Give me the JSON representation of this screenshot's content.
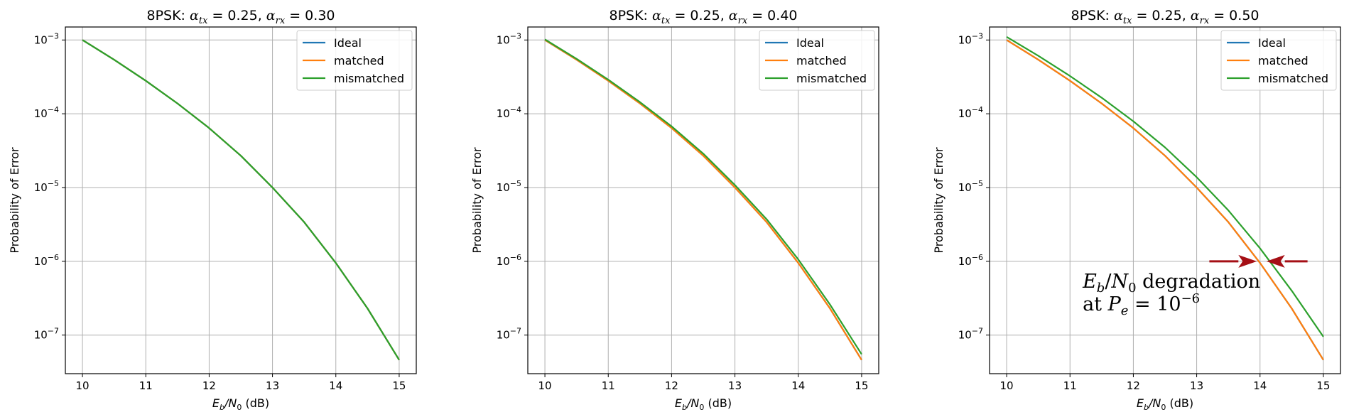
{
  "chart_data": [
    {
      "type": "line",
      "title": "8PSK: α_tx = 0.25, α_rx = 0.30",
      "title_parts": {
        "prefix": "8PSK: ",
        "alpha_tx": "0.25",
        "alpha_rx": "0.30"
      },
      "xlabel": "E_b/N_0 (dB)",
      "ylabel": "Probability of Error",
      "xlim": [
        9.73,
        15.27
      ],
      "ylim": [
        3e-08,
        0.0015
      ],
      "yscale": "log",
      "grid": true,
      "legend_position": "top-right",
      "xticks": [
        10,
        11,
        12,
        13,
        14,
        15
      ],
      "yticks": [
        {
          "exp": -3,
          "value": 0.001
        },
        {
          "exp": -4,
          "value": 0.0001
        },
        {
          "exp": -5,
          "value": 1e-05
        },
        {
          "exp": -6,
          "value": 1e-06
        },
        {
          "exp": -7,
          "value": 1e-07
        }
      ],
      "x": [
        10,
        10.5,
        11,
        11.5,
        12,
        12.5,
        13,
        13.5,
        14,
        14.5,
        15
      ],
      "series": [
        {
          "name": "Ideal",
          "color": "#1f77b4",
          "values": [
            0.001,
            0.00054,
            0.00028,
            0.000138,
            6.4e-05,
            2.7e-05,
            1e-05,
            3.4e-06,
            9.5e-07,
            2.3e-07,
            4.6e-08
          ]
        },
        {
          "name": "matched",
          "color": "#ff7f0e",
          "values": [
            0.001,
            0.00054,
            0.00028,
            0.000138,
            6.4e-05,
            2.7e-05,
            1e-05,
            3.4e-06,
            9.5e-07,
            2.3e-07,
            4.6e-08
          ]
        },
        {
          "name": "mismatched",
          "color": "#2ca02c",
          "values": [
            0.001,
            0.00054,
            0.00028,
            0.000138,
            6.4e-05,
            2.7e-05,
            1e-05,
            3.4e-06,
            9.5e-07,
            2.3e-07,
            4.6e-08
          ]
        }
      ]
    },
    {
      "type": "line",
      "title": "8PSK: α_tx = 0.25, α_rx = 0.40",
      "title_parts": {
        "prefix": "8PSK: ",
        "alpha_tx": "0.25",
        "alpha_rx": "0.40"
      },
      "xlabel": "E_b/N_0 (dB)",
      "ylabel": "Probability of Error",
      "xlim": [
        9.73,
        15.27
      ],
      "ylim": [
        3e-08,
        0.0015
      ],
      "yscale": "log",
      "grid": true,
      "legend_position": "top-right",
      "xticks": [
        10,
        11,
        12,
        13,
        14,
        15
      ],
      "yticks": [
        {
          "exp": -3,
          "value": 0.001
        },
        {
          "exp": -4,
          "value": 0.0001
        },
        {
          "exp": -5,
          "value": 1e-05
        },
        {
          "exp": -6,
          "value": 1e-06
        },
        {
          "exp": -7,
          "value": 1e-07
        }
      ],
      "x": [
        10,
        10.5,
        11,
        11.5,
        12,
        12.5,
        13,
        13.5,
        14,
        14.5,
        15
      ],
      "series": [
        {
          "name": "Ideal",
          "color": "#1f77b4",
          "values": [
            0.001,
            0.00054,
            0.00028,
            0.000138,
            6.4e-05,
            2.7e-05,
            1e-05,
            3.4e-06,
            9.5e-07,
            2.3e-07,
            4.6e-08
          ]
        },
        {
          "name": "matched",
          "color": "#ff7f0e",
          "values": [
            0.001,
            0.00054,
            0.00028,
            0.000138,
            6.4e-05,
            2.7e-05,
            1e-05,
            3.4e-06,
            9.5e-07,
            2.3e-07,
            4.6e-08
          ]
        },
        {
          "name": "mismatched",
          "color": "#2ca02c",
          "values": [
            0.00102,
            0.000555,
            0.00029,
            0.000144,
            6.75e-05,
            2.88e-05,
            1.08e-05,
            3.72e-06,
            1.06e-06,
            2.6e-07,
            5.5e-08
          ]
        }
      ]
    },
    {
      "type": "line",
      "title": "8PSK: α_tx = 0.25, α_rx = 0.50",
      "title_parts": {
        "prefix": "8PSK: ",
        "alpha_tx": "0.25",
        "alpha_rx": "0.50"
      },
      "xlabel": "E_b/N_0 (dB)",
      "ylabel": "Probability of Error",
      "xlim": [
        9.73,
        15.27
      ],
      "ylim": [
        3e-08,
        0.0015
      ],
      "yscale": "log",
      "grid": true,
      "legend_position": "top-right",
      "xticks": [
        10,
        11,
        12,
        13,
        14,
        15
      ],
      "yticks": [
        {
          "exp": -3,
          "value": 0.001
        },
        {
          "exp": -4,
          "value": 0.0001
        },
        {
          "exp": -5,
          "value": 1e-05
        },
        {
          "exp": -6,
          "value": 1e-06
        },
        {
          "exp": -7,
          "value": 1e-07
        }
      ],
      "x": [
        10,
        10.5,
        11,
        11.5,
        12,
        12.5,
        13,
        13.5,
        14,
        14.5,
        15
      ],
      "series": [
        {
          "name": "Ideal",
          "color": "#1f77b4",
          "values": [
            0.001,
            0.00054,
            0.00028,
            0.000138,
            6.4e-05,
            2.7e-05,
            1e-05,
            3.4e-06,
            9.5e-07,
            2.3e-07,
            4.6e-08
          ]
        },
        {
          "name": "matched",
          "color": "#ff7f0e",
          "values": [
            0.001,
            0.00054,
            0.00028,
            0.000138,
            6.4e-05,
            2.7e-05,
            1e-05,
            3.4e-06,
            9.5e-07,
            2.3e-07,
            4.6e-08
          ]
        },
        {
          "name": "mismatched",
          "color": "#2ca02c",
          "values": [
            0.0011,
            0.00061,
            0.000325,
            0.000165,
            7.9e-05,
            3.5e-05,
            1.38e-05,
            4.9e-06,
            1.5e-06,
            4e-07,
            9.5e-08
          ]
        }
      ],
      "annotation": {
        "line1_text": "E_b/N_0 degradation",
        "line2_prefix": "at ",
        "line2_var": "P_e = 10^-6",
        "arrow_y": 1e-06,
        "arrow_left_from_x": 13.2,
        "arrow_left_to_x": 13.95,
        "arrow_right_from_x": 14.75,
        "arrow_right_to_x": 14.1,
        "arrow_color": "#a50f15"
      }
    }
  ]
}
